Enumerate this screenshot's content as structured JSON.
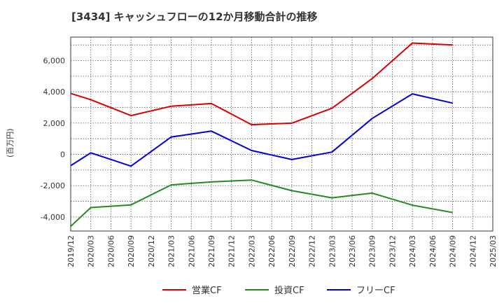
{
  "chart_data": {
    "type": "line",
    "title": "[3434]  キャッシュフローの12か月移動合計の推移",
    "ylabel": "(百万円)",
    "xlabel": "",
    "ylim": [
      -4900,
      7500
    ],
    "yticks": [
      -4000,
      -2000,
      0,
      2000,
      4000,
      6000
    ],
    "ytick_labels": [
      "-4,000",
      "-2,000",
      "0",
      "2,000",
      "4,000",
      "6,000"
    ],
    "xticks": [
      "2019/12",
      "2020/03",
      "2020/06",
      "2020/09",
      "2020/12",
      "2021/03",
      "2021/06",
      "2021/09",
      "2021/12",
      "2022/03",
      "2022/06",
      "2022/09",
      "2022/12",
      "2023/03",
      "2023/06",
      "2023/09",
      "2023/12",
      "2024/03",
      "2024/06",
      "2024/09",
      "2024/12",
      "2025/03"
    ],
    "grid": true,
    "legend_position": "bottom",
    "series": [
      {
        "name": "営業CF",
        "color": "#dd0000",
        "points": [
          {
            "x": "2019/12",
            "y": 3900
          },
          {
            "x": "2020/03",
            "y": 3500
          },
          {
            "x": "2020/09",
            "y": 2480
          },
          {
            "x": "2021/03",
            "y": 3080
          },
          {
            "x": "2021/09",
            "y": 3250
          },
          {
            "x": "2022/03",
            "y": 1900
          },
          {
            "x": "2022/09",
            "y": 2000
          },
          {
            "x": "2023/03",
            "y": 2950
          },
          {
            "x": "2023/09",
            "y": 4850
          },
          {
            "x": "2024/03",
            "y": 7120
          },
          {
            "x": "2024/09",
            "y": 7000
          }
        ]
      },
      {
        "name": "投資CF",
        "color": "#228B22",
        "points": [
          {
            "x": "2019/12",
            "y": -4600
          },
          {
            "x": "2020/03",
            "y": -3400
          },
          {
            "x": "2020/09",
            "y": -3230
          },
          {
            "x": "2021/03",
            "y": -1950
          },
          {
            "x": "2021/09",
            "y": -1760
          },
          {
            "x": "2022/03",
            "y": -1640
          },
          {
            "x": "2022/09",
            "y": -2320
          },
          {
            "x": "2023/03",
            "y": -2780
          },
          {
            "x": "2023/09",
            "y": -2480
          },
          {
            "x": "2024/03",
            "y": -3250
          },
          {
            "x": "2024/09",
            "y": -3720
          }
        ]
      },
      {
        "name": "フリーCF",
        "color": "#0000dd",
        "points": [
          {
            "x": "2019/12",
            "y": -720
          },
          {
            "x": "2020/03",
            "y": 100
          },
          {
            "x": "2020/09",
            "y": -750
          },
          {
            "x": "2021/03",
            "y": 1110
          },
          {
            "x": "2021/09",
            "y": 1490
          },
          {
            "x": "2022/03",
            "y": 250
          },
          {
            "x": "2022/09",
            "y": -330
          },
          {
            "x": "2023/03",
            "y": 150
          },
          {
            "x": "2023/09",
            "y": 2300
          },
          {
            "x": "2024/03",
            "y": 3870
          },
          {
            "x": "2024/09",
            "y": 3280
          }
        ]
      }
    ]
  }
}
